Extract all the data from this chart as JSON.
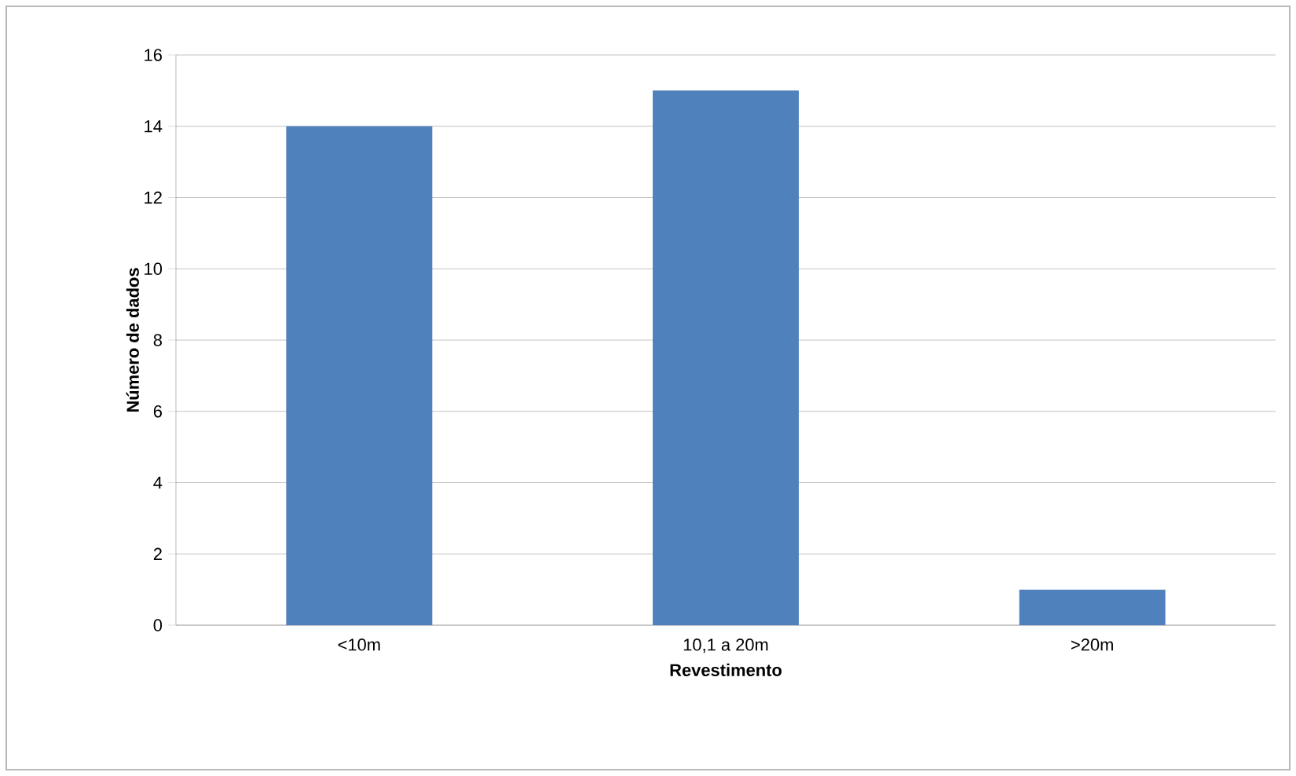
{
  "chart_data": {
    "type": "bar",
    "xlabel": "Revestimento",
    "ylabel": "Número de dados",
    "categories": [
      "<10m",
      "10,1 a 20m",
      ">20m"
    ],
    "values": [
      14,
      15,
      1
    ],
    "color": "#4f81bd",
    "ylim": [
      0,
      16
    ],
    "yticks": [
      0,
      2,
      4,
      6,
      8,
      10,
      12,
      14,
      16
    ],
    "grid": "y"
  }
}
